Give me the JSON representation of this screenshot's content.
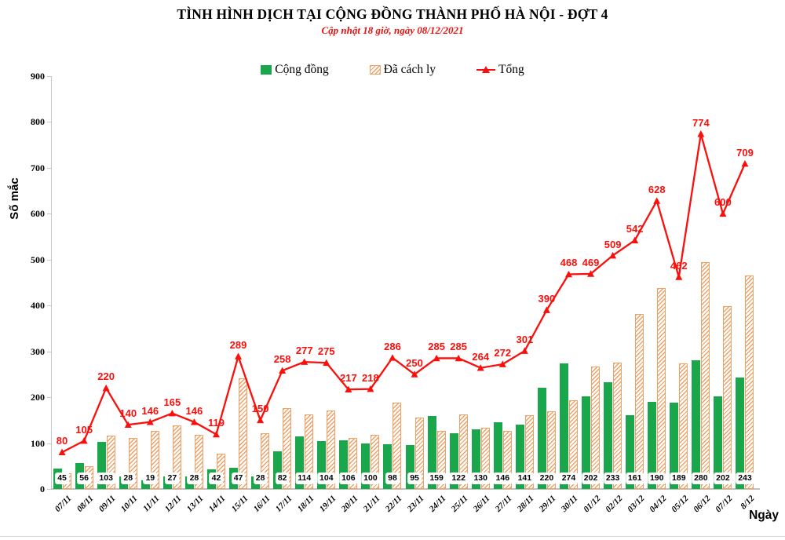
{
  "chart_data": {
    "type": "bar",
    "title": "TÌNH HÌNH DỊCH TẠI CỘNG ĐỒNG THÀNH PHỐ HÀ NỘI - ĐỢT 4",
    "subtitle": "Cập nhật 18 giờ, ngày 08/12/2021",
    "xlabel": "Ngày",
    "ylabel": "Số mắc",
    "ylim": [
      0,
      900
    ],
    "ytick_step": 100,
    "yticks": [
      0,
      100,
      200,
      300,
      400,
      500,
      600,
      700,
      800,
      900
    ],
    "grid": false,
    "legend_position": "top-center",
    "categories": [
      "07/11",
      "08/11",
      "09/11",
      "10/11",
      "11/11",
      "12/11",
      "13/11",
      "14/11",
      "15/11",
      "16/11",
      "17/11",
      "18/11",
      "19/11",
      "20/11",
      "21/11",
      "22/11",
      "23/11",
      "24/11",
      "25/11",
      "26/11",
      "27/11",
      "28/11",
      "29/11",
      "30/11",
      "01/12",
      "02/12",
      "03/12",
      "04/12",
      "05/12",
      "06/12",
      "07/12",
      "8/12"
    ],
    "series": [
      {
        "name": "Cộng đồng",
        "type": "bar",
        "color": "#1aa74b",
        "labels_shown": true,
        "values": [
          45,
          56,
          103,
          28,
          19,
          27,
          28,
          42,
          47,
          28,
          82,
          114,
          104,
          106,
          100,
          98,
          95,
          159,
          122,
          130,
          146,
          141,
          220,
          274,
          202,
          233,
          161,
          190,
          189,
          280,
          202,
          243
        ]
      },
      {
        "name": "Đã cách ly",
        "type": "bar",
        "color": "#f29e62",
        "pattern": "diagonal-hatch",
        "labels_shown": false,
        "values": [
          35,
          49,
          117,
          112,
          127,
          138,
          118,
          77,
          242,
          122,
          176,
          163,
          171,
          111,
          118,
          188,
          155,
          126,
          163,
          134,
          126,
          160,
          170,
          194,
          267,
          276,
          381,
          438,
          273,
          494,
          398,
          466
        ]
      },
      {
        "name": "Tổng",
        "type": "line",
        "color": "#fa0f0c",
        "marker": "triangle-up",
        "labels_shown": true,
        "values": [
          80,
          105,
          220,
          140,
          146,
          165,
          146,
          119,
          289,
          150,
          258,
          277,
          275,
          217,
          218,
          286,
          250,
          285,
          285,
          264,
          272,
          301,
          390,
          468,
          469,
          509,
          542,
          628,
          462,
          774,
          600,
          709
        ]
      }
    ]
  }
}
